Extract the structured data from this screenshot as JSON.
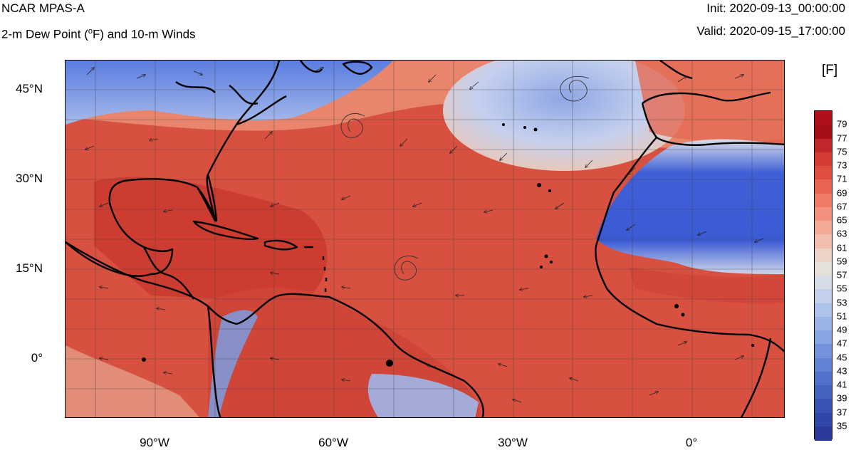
{
  "header": {
    "model_name": "NCAR MPAS-A",
    "field_title": "2-m Dew Point (",
    "field_sup": "o",
    "field_title_rest": "F) and 10-m Winds",
    "init": "Init: 2020-09-13_00:00:00",
    "valid": "Valid: 2020-09-15_17:00:00"
  },
  "axes": {
    "lat_labels": [
      "45°N",
      "30°N",
      "15°N",
      "0°"
    ],
    "lon_labels": [
      "90°W",
      "60°W",
      "30°W",
      "0°"
    ]
  },
  "colorbar": {
    "units": "[F]",
    "labels": [
      "79",
      "77",
      "75",
      "73",
      "71",
      "69",
      "67",
      "65",
      "63",
      "61",
      "59",
      "57",
      "55",
      "53",
      "51",
      "49",
      "47",
      "45",
      "43",
      "41",
      "39",
      "37",
      "35"
    ],
    "colors_top_to_bottom": [
      "#a50f15",
      "#c0282b",
      "#d33b33",
      "#e04e3f",
      "#e86450",
      "#ee7b66",
      "#f2927e",
      "#f4a994",
      "#f2bfae",
      "#ecd3c8",
      "#e6e0da",
      "#d6dce8",
      "#c2d0ec",
      "#aec3ec",
      "#9ab4e8",
      "#87a4e3",
      "#7493dc",
      "#6282d4",
      "#5271ca",
      "#4462c0",
      "#3953b5",
      "#3146a9",
      "#2b3a9c"
    ]
  },
  "map": {
    "ocean_color": "#d54a3e",
    "land_north_color": "#3b5bd0",
    "sahara_color": "#3b5cd6",
    "coastline_color": "#000000"
  }
}
